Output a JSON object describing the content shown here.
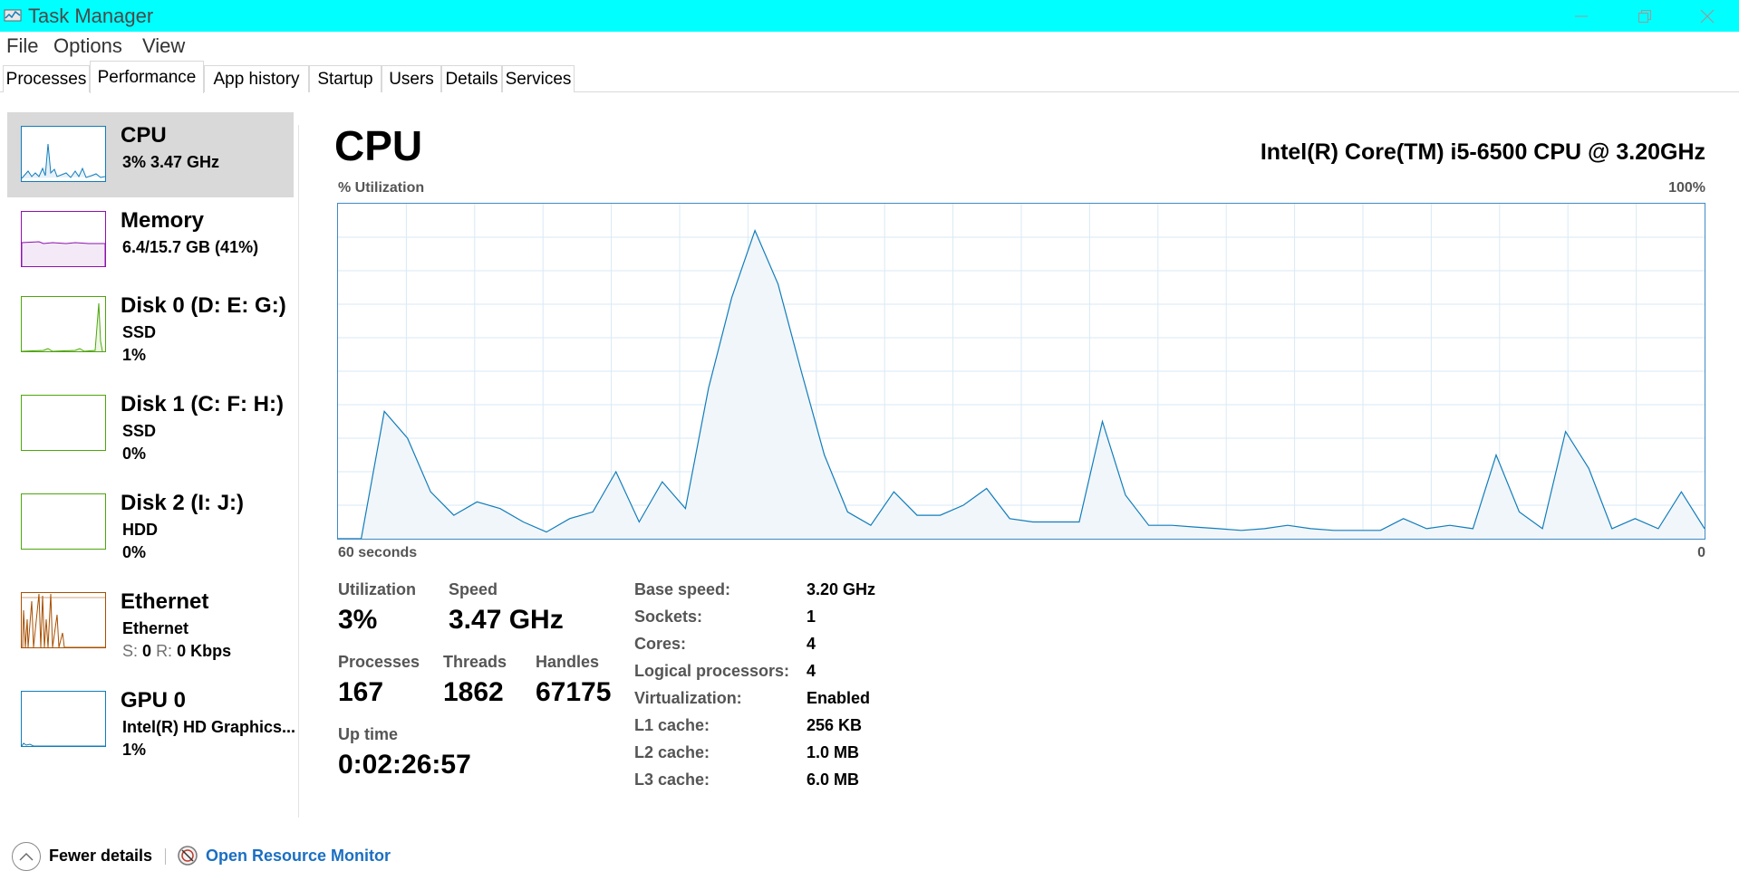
{
  "window": {
    "title": "Task Manager"
  },
  "menu": [
    "File",
    "Options",
    "View"
  ],
  "tabs": [
    "Processes",
    "Performance",
    "App history",
    "Startup",
    "Users",
    "Details",
    "Services"
  ],
  "active_tab": "Performance",
  "sidebar": [
    {
      "title": "CPU",
      "sub1": "3%  3.47 GHz",
      "sub2": "",
      "color": "#117dbb"
    },
    {
      "title": "Memory",
      "sub1": "6.4/15.7 GB (41%)",
      "sub2": "",
      "color": "#8b12ae"
    },
    {
      "title": "Disk 0 (D: E: G:)",
      "sub1": "SSD",
      "sub2": "1%",
      "color": "#4da60c"
    },
    {
      "title": "Disk 1 (C: F: H:)",
      "sub1": "SSD",
      "sub2": "0%",
      "color": "#4da60c"
    },
    {
      "title": "Disk 2 (I: J:)",
      "sub1": "HDD",
      "sub2": "0%",
      "color": "#4da60c"
    },
    {
      "title": "Ethernet",
      "sub1": "Ethernet",
      "sub2_s_label": "S:",
      "sub2_s_value": "0",
      "sub2_r_label": "R:",
      "sub2_r_value": "0 Kbps",
      "color": "#a74f01"
    },
    {
      "title": "GPU 0",
      "sub1": "Intel(R) HD Graphics...",
      "sub2": "1%",
      "color": "#117dbb"
    }
  ],
  "main": {
    "title": "CPU",
    "model": "Intel(R) Core(TM) i5-6500 CPU @ 3.20GHz",
    "graph": {
      "y_label": "% Utilization",
      "y_max_label": "100%",
      "x_left_label": "60 seconds",
      "x_right_label": "0",
      "line_color": "#117dbb",
      "fill_color": "#f1f6fa",
      "grid_color": "#d9eaf4",
      "utilization_percent": [
        0,
        0,
        38,
        30,
        14,
        7,
        11,
        9,
        5,
        2,
        6,
        8,
        20,
        5,
        17,
        9,
        45,
        72,
        92,
        76,
        50,
        25,
        8,
        4,
        14,
        7,
        7,
        10,
        15,
        6,
        5,
        5,
        5,
        35,
        13,
        4,
        4,
        3.5,
        3,
        2.5,
        3,
        4,
        3,
        2.5,
        2.5,
        2.5,
        6,
        3,
        4,
        3,
        25,
        8,
        3,
        32,
        21,
        3,
        6,
        3,
        14,
        3
      ]
    },
    "stats": {
      "utilization_label": "Utilization",
      "utilization_value": "3%",
      "speed_label": "Speed",
      "speed_value": "3.47 GHz",
      "processes_label": "Processes",
      "processes_value": "167",
      "threads_label": "Threads",
      "threads_value": "1862",
      "handles_label": "Handles",
      "handles_value": "67175",
      "uptime_label": "Up time",
      "uptime_value": "0:02:26:57"
    },
    "specs": [
      {
        "label": "Base speed:",
        "value": "3.20 GHz"
      },
      {
        "label": "Sockets:",
        "value": "1"
      },
      {
        "label": "Cores:",
        "value": "4"
      },
      {
        "label": "Logical processors:",
        "value": "4"
      },
      {
        "label": "Virtualization:",
        "value": "Enabled"
      },
      {
        "label": "L1 cache:",
        "value": "256 KB"
      },
      {
        "label": "L2 cache:",
        "value": "1.0 MB"
      },
      {
        "label": "L3 cache:",
        "value": "6.0 MB"
      }
    ]
  },
  "footer": {
    "fewer_details": "Fewer details",
    "resource_monitor": "Open Resource Monitor"
  }
}
